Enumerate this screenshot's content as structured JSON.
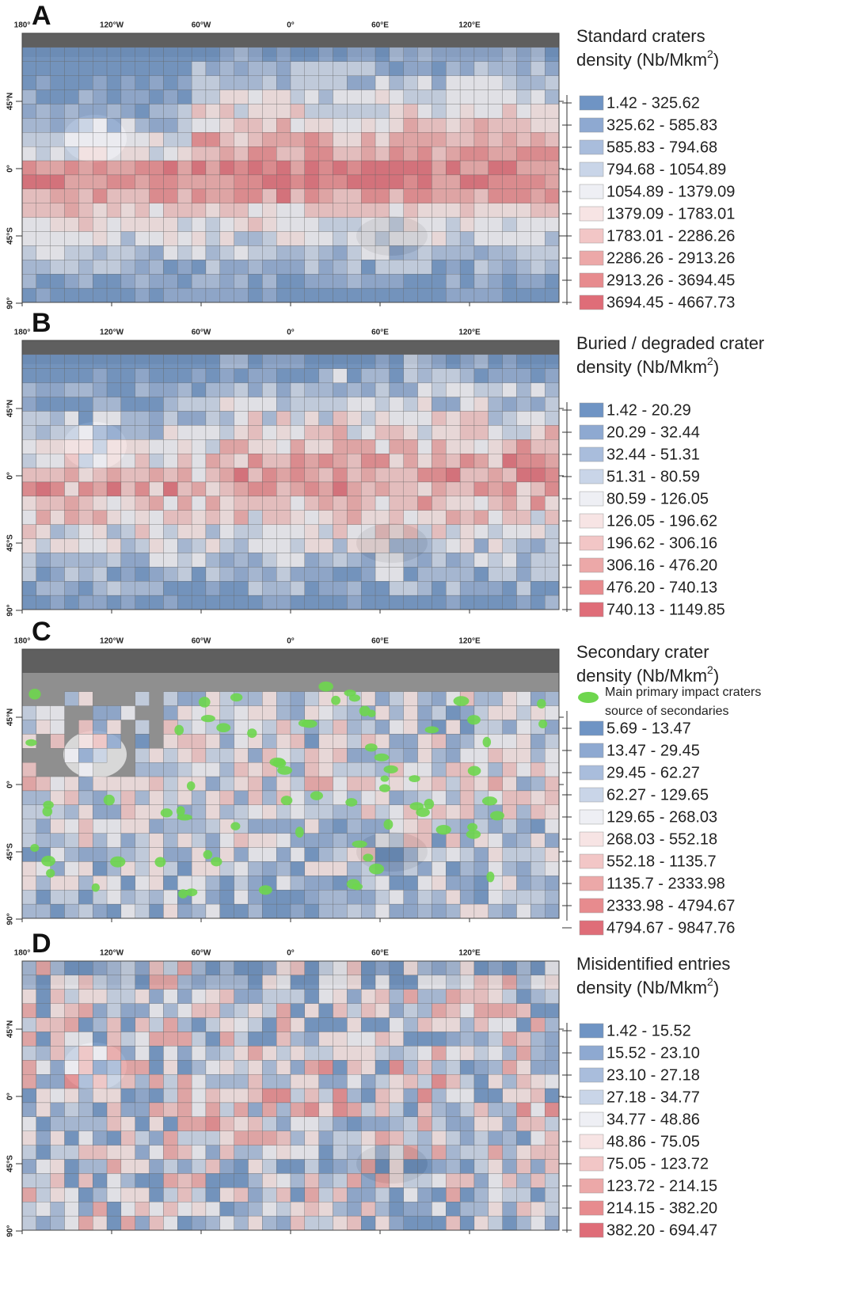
{
  "lon_labels": [
    "180°",
    "120°W",
    "60°W",
    "0°",
    "60°E",
    "120°E"
  ],
  "lat_labels": [
    "45°N",
    "0°",
    "45°S",
    "90°"
  ],
  "panels": [
    {
      "letter": "A",
      "legend": {
        "title": "Standard craters",
        "subtitle": "density (Nb/Mkm",
        "superscript": "2",
        "subtitle_end": ")",
        "ranges": [
          "1.42 - 325.62",
          "325.62 - 585.83",
          "585.83 - 794.68",
          "794.68 - 1054.89",
          "1054.89 - 1379.09",
          "1379.09 - 1783.01",
          "1783.01 - 2286.26",
          "2286.26 - 2913.26",
          "2913.26 - 3694.45",
          "3694.45 - 4667.73"
        ]
      }
    },
    {
      "letter": "B",
      "legend": {
        "title": "Buried / degraded crater",
        "subtitle": "density (Nb/Mkm",
        "superscript": "2",
        "subtitle_end": ")",
        "ranges": [
          "1.42 - 20.29",
          "20.29 - 32.44",
          "32.44 - 51.31",
          "51.31 - 80.59",
          "80.59 - 126.05",
          "126.05 - 196.62",
          "196.62 - 306.16",
          "306.16 - 476.20",
          "476.20 - 740.13",
          "740.13 - 1149.85"
        ]
      }
    },
    {
      "letter": "C",
      "legend": {
        "title": "Secondary crater",
        "subtitle": "density (Nb/Mkm",
        "superscript": "2",
        "subtitle_end": ")",
        "marker_label": [
          "Main primary impact craters",
          "source of secondaries"
        ],
        "ranges": [
          "5.69 - 13.47",
          "13.47 - 29.45",
          "29.45 - 62.27",
          "62.27 - 129.65",
          "129.65 - 268.03",
          "268.03 - 552.18",
          "552.18 - 1135.7",
          "1135.7 - 2333.98",
          "2333.98 - 4794.67",
          "4794.67 - 9847.76"
        ]
      }
    },
    {
      "letter": "D",
      "legend": {
        "title": "Misidentified entries",
        "subtitle": "density (Nb/Mkm",
        "superscript": "2",
        "subtitle_end": ")",
        "ranges": [
          "1.42 - 15.52",
          "15.52 - 23.10",
          "23.10 - 27.18",
          "27.18 - 34.77",
          "34.77 - 48.86",
          "48.86 - 75.05",
          "75.05 - 123.72",
          "123.72 - 214.15",
          "214.15 - 382.20",
          "382.20 - 694.47"
        ]
      }
    }
  ]
}
